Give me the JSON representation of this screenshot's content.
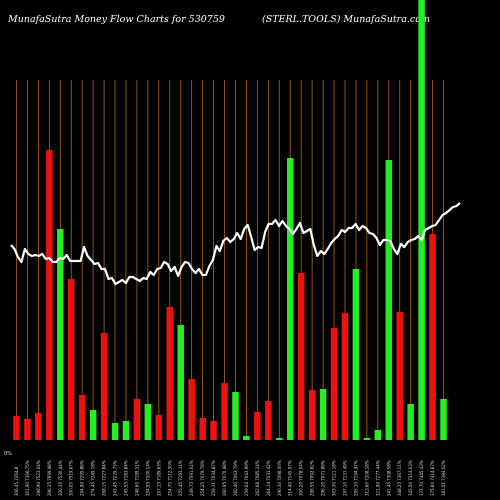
{
  "header": {
    "title_left": "MunafaSutra  Money Flow  Charts for 530759",
    "title_right": "(STERL.TOOLS) MunafaSutra.com"
  },
  "chart_data": {
    "type": "bar",
    "title": "MunafaSutra  Money Flow  Charts for 530759",
    "subtitle": "(STERL.TOOLS) MunafaSutra.com",
    "y_axis_marker": "0%",
    "grid": "vertical",
    "colors": {
      "up": "#22ee22",
      "down": "#ee1111",
      "line": "#ffffff",
      "grid": "#b8660b",
      "background": "#000000"
    },
    "bars": [
      {
        "label": "306.45 7264.8",
        "value": 24,
        "dir": "down"
      },
      {
        "label": "301.90 7366.75%",
        "value": 21,
        "dir": "down"
      },
      {
        "label": "298.90 7523.04%",
        "value": 27,
        "dir": "down"
      },
      {
        "label": "296.35 7699.98%",
        "value": 290,
        "dir": "down"
      },
      {
        "label": "300.35 7530.44%",
        "value": 211,
        "dir": "up"
      },
      {
        "label": "300.05 7519.67%",
        "value": 161,
        "dir": "down"
      },
      {
        "label": "294.90 7295.86%",
        "value": 45,
        "dir": "down"
      },
      {
        "label": "274.45 7249.18%",
        "value": 30,
        "dir": "up"
      },
      {
        "label": "268.15 7227.84%",
        "value": 107,
        "dir": "down"
      },
      {
        "label": "243.45 7229.73%",
        "value": 17,
        "dir": "up"
      },
      {
        "label": "245.55 7183.84%",
        "value": 19,
        "dir": "up"
      },
      {
        "label": "248.60 7199.51%",
        "value": 41,
        "dir": "down"
      },
      {
        "label": "254.55 7200.14%",
        "value": 36,
        "dir": "up"
      },
      {
        "label": "257.15 7189.63%",
        "value": 25,
        "dir": "down"
      },
      {
        "label": "254.75 7112.50%",
        "value": 133,
        "dir": "down"
      },
      {
        "label": "255.45 7193.11%",
        "value": 115,
        "dir": "up"
      },
      {
        "label": "249.75 7091.02%",
        "value": 61,
        "dir": "down"
      },
      {
        "label": "254.25 7079.78%",
        "value": 22,
        "dir": "down"
      },
      {
        "label": "259.11 7034.87%",
        "value": 19,
        "dir": "down"
      },
      {
        "label": "260.95 7070.98%",
        "value": 57,
        "dir": "down"
      },
      {
        "label": "260.40 7063.79%",
        "value": 48,
        "dir": "up"
      },
      {
        "label": "259.64 7043.99%",
        "value": 4,
        "dir": "up"
      },
      {
        "label": "262.68 7085.24%",
        "value": 28,
        "dir": "down"
      },
      {
        "label": "264.14 7031.42%",
        "value": 39,
        "dir": "down"
      },
      {
        "label": "290.30 7098.00%",
        "value": 2,
        "dir": "up"
      },
      {
        "label": "314.40 7145.97%",
        "value": 282,
        "dir": "up"
      },
      {
        "label": "300.20 7078.04%",
        "value": 167,
        "dir": "down"
      },
      {
        "label": "296.55 7092.62%",
        "value": 50,
        "dir": "down"
      },
      {
        "label": "296.20 7071.89%",
        "value": 51,
        "dir": "up"
      },
      {
        "label": "303.30 7121.18%",
        "value": 112,
        "dir": "down"
      },
      {
        "label": "297.10 7131.49%",
        "value": 127,
        "dir": "down"
      },
      {
        "label": "295.10 7194.97%",
        "value": 171,
        "dir": "up"
      },
      {
        "label": "313.60 7208.18%",
        "value": 2,
        "dir": "up"
      },
      {
        "label": "321.90 7277.44%",
        "value": 10,
        "dir": "up"
      },
      {
        "label": "341.45 7308.58%",
        "value": 280,
        "dir": "up"
      },
      {
        "label": "348.25 7367.11%",
        "value": 128,
        "dir": "down"
      },
      {
        "label": "345.50 7314.03%",
        "value": 36,
        "dir": "up"
      },
      {
        "label": "372.70 7445.43%",
        "value": 460,
        "dir": "up"
      },
      {
        "label": "375.60 7414.67%",
        "value": 206,
        "dir": "down"
      },
      {
        "label": "381.51 7384.52%",
        "value": 41,
        "dir": "up"
      }
    ],
    "line_series": {
      "name": "price",
      "values": [
        245,
        241,
        233,
        228,
        241,
        236,
        234,
        235,
        234,
        236,
        231,
        232,
        228,
        228,
        232,
        231,
        235,
        229,
        229,
        229,
        229,
        243,
        234,
        230,
        226,
        227,
        221,
        221,
        211,
        212,
        206,
        208,
        210,
        207,
        213,
        213,
        211,
        209,
        212,
        211,
        218,
        215,
        221,
        222,
        228,
        226,
        219,
        223,
        214,
        223,
        228,
        227,
        221,
        217,
        221,
        215,
        215,
        224,
        230,
        244,
        239,
        249,
        252,
        248,
        251,
        257,
        251,
        261,
        265,
        253,
        240,
        243,
        242,
        258,
        266,
        266,
        270,
        264,
        269,
        264,
        261,
        256,
        261,
        267,
        257,
        259,
        261,
        245,
        234,
        239,
        236,
        241,
        247,
        251,
        254,
        260,
        258,
        262,
        262,
        266,
        260,
        264,
        262,
        257,
        256,
        252,
        245,
        250,
        250,
        249,
        241,
        236,
        246,
        243,
        248,
        250,
        251,
        254,
        250,
        260,
        262,
        264,
        265,
        270,
        275,
        277,
        280,
        283,
        284,
        287
      ]
    }
  }
}
